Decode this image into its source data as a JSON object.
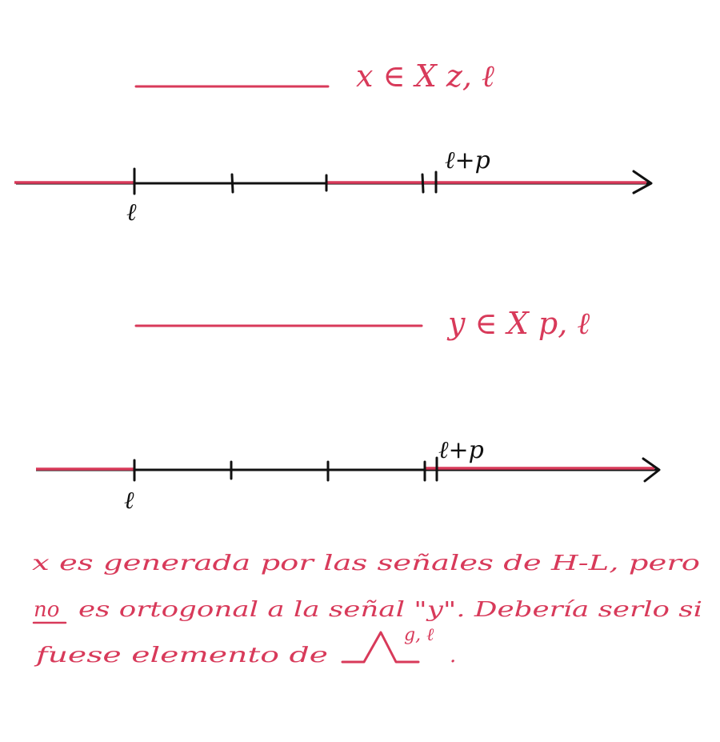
{
  "colors": {
    "accent": "#d83a5a",
    "ink": "#111111",
    "background": "#ffffff"
  },
  "top": {
    "set_label": "x ∈ X z, ℓ",
    "tick_left_label": "ℓ",
    "tick_right_label": "ℓ+p"
  },
  "bottom": {
    "set_label": "y ∈ X p, ℓ",
    "tick_left_label": "ℓ",
    "tick_right_label": "ℓ+p"
  },
  "note": {
    "line1": "x es generada por las señales de H-L, pero",
    "line2_underlined": "no",
    "line2_rest": "es ortogonal a la señal \"y\". Debería serlo si",
    "line3": "fuese elemento de",
    "superscript": "g, ℓ",
    "trailing": "."
  }
}
